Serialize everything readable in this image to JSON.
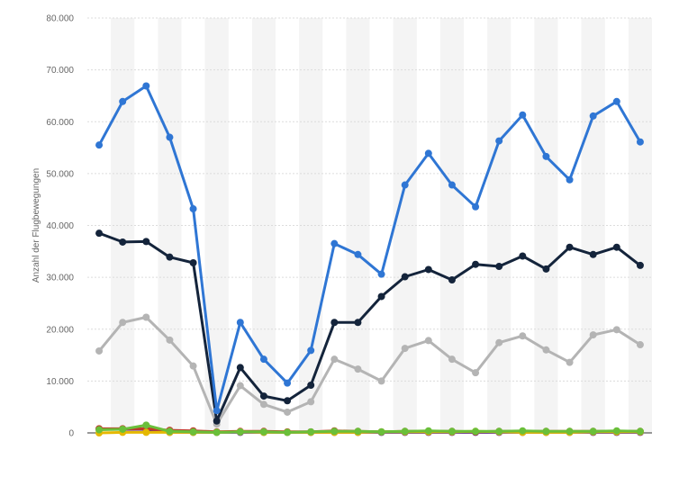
{
  "chart_data": {
    "type": "line",
    "ylabel": "Anzahl der Flugbewegungen",
    "ylim": [
      0,
      80000
    ],
    "yticks": [
      0,
      10000,
      20000,
      30000,
      40000,
      50000,
      60000,
      70000,
      80000
    ],
    "ytick_labels": [
      "0",
      "10.000",
      "20.000",
      "30.000",
      "40.000",
      "50.000",
      "60.000",
      "70.000",
      "80.000"
    ],
    "grid": true,
    "legend": "none",
    "series": [
      {
        "color": "#2f76d4",
        "values": [
          55500,
          63900,
          66900,
          57000,
          43200,
          4300,
          21300,
          14200,
          9600,
          15900,
          36500,
          34400,
          30600,
          47800,
          53900,
          47800,
          43600,
          56300,
          61300,
          53300,
          48800,
          61100,
          63900,
          56100
        ]
      },
      {
        "color": "#14243b",
        "values": [
          38500,
          36800,
          36900,
          33900,
          32800,
          2300,
          12600,
          7100,
          6200,
          9200,
          21300,
          21300,
          26300,
          30100,
          31500,
          29500,
          32500,
          32100,
          34100,
          31600,
          35800,
          34400,
          35800,
          32300
        ]
      },
      {
        "color": "#b4b4b4",
        "values": [
          15800,
          21300,
          22300,
          17900,
          12900,
          1700,
          9100,
          5500,
          4000,
          6000,
          14200,
          12300,
          10000,
          16300,
          17800,
          14200,
          11600,
          17400,
          18700,
          16000,
          13600,
          18900,
          19900,
          17000
        ]
      },
      {
        "color": "#6abf3a",
        "values": [
          600,
          700,
          1500,
          300,
          200,
          100,
          200,
          200,
          100,
          200,
          300,
          300,
          200,
          300,
          400,
          300,
          300,
          300,
          400,
          300,
          300,
          300,
          400,
          300
        ]
      },
      {
        "color": "#e5b800",
        "values": [
          0,
          100,
          100,
          100,
          100,
          100,
          200,
          100,
          100,
          100,
          100,
          100,
          200,
          200,
          200,
          200,
          300,
          200,
          100,
          100,
          100,
          200,
          200,
          200
        ]
      },
      {
        "color": "#c0392b",
        "values": [
          800,
          800,
          800,
          500,
          400,
          200,
          300,
          300,
          200,
          200,
          400,
          300,
          200,
          300,
          300,
          300,
          200,
          300,
          300,
          300,
          300,
          300,
          300,
          300
        ]
      },
      {
        "color": "#5b2a86",
        "values": [
          700,
          700,
          700,
          100,
          100,
          100,
          100,
          100,
          100,
          100,
          100,
          100,
          100,
          100,
          100,
          100,
          100,
          100,
          100,
          100,
          100,
          100,
          100,
          100
        ]
      }
    ]
  }
}
